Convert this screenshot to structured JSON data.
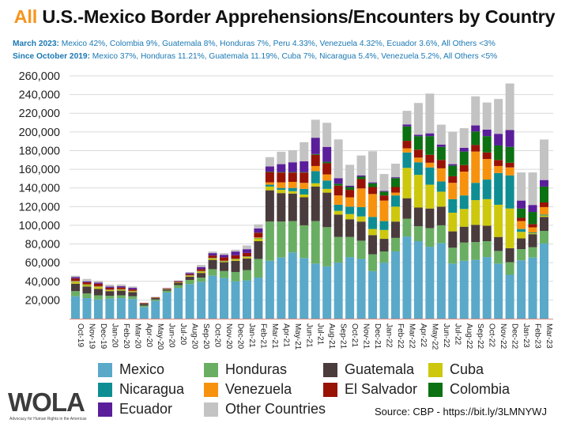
{
  "header": {
    "title_accent": "All",
    "title_rest": " U.S.-Mexico Border Apprehensions/Encounters by Country",
    "sub1_label": "March 2023:",
    "sub1_text": " Mexico 42%, Colombia 9%, Guatemala 8%, Honduras 7%, Peru 4.33%, Venezuela 4.32%, Ecuador 3.6%, All Others <3%",
    "sub2_label": "Since October 2019:",
    "sub2_text": " Mexico 37%, Honduras 11.21%, Guatemala 11.19%, Cuba 7%, Nicaragua 5.4%, Venezuela 5.2%, All Others <5%"
  },
  "footer": {
    "source": "Source: CBP - https://bit.ly/3LMNYWJ",
    "logo_text": "WOLA",
    "logo_tagline": "Advocacy for Human Rights in the Americas"
  },
  "chart_data": {
    "type": "bar",
    "stacked": true,
    "title": "All U.S.-Mexico Border Apprehensions/Encounters by Country",
    "xlabel": "",
    "ylabel": "",
    "ylim": [
      0,
      260000
    ],
    "yticks": [
      20000,
      40000,
      60000,
      80000,
      100000,
      120000,
      140000,
      160000,
      180000,
      200000,
      220000,
      240000,
      260000
    ],
    "ytick_labels": [
      "20,000",
      "40,000",
      "60,000",
      "80,000",
      "100,000",
      "120,000",
      "140,000",
      "160,000",
      "180,000",
      "200,000",
      "220,000",
      "240,000",
      "260,000"
    ],
    "grid": true,
    "legend_position": "bottom",
    "categories": [
      "Oct-19",
      "Nov-19",
      "Dec-19",
      "Jan-20",
      "Feb-20",
      "Mar-20",
      "Apr-20",
      "May-20",
      "Jun-20",
      "Jul-20",
      "Aug-20",
      "Sep-20",
      "Oct-20",
      "Nov-20",
      "Dec-20",
      "Jan-21",
      "Feb-21",
      "Mar-21",
      "Apr-21",
      "May-21",
      "Jun-21",
      "Jul-21",
      "Aug-21",
      "Sep-21",
      "Oct-21",
      "Nov-21",
      "Dec-21",
      "Jan-22",
      "Feb-22",
      "Mar-22",
      "Apr-22",
      "May-22",
      "Jun-22",
      "Jul-22",
      "Aug-22",
      "Sep-22",
      "Oct-22",
      "Nov-22",
      "Dec-22",
      "Jan-23",
      "Feb-23",
      "Mar-23"
    ],
    "series": [
      {
        "name": "Mexico",
        "color": "#5aa9c9",
        "values": [
          24000,
          22000,
          20500,
          21500,
          22000,
          21000,
          12500,
          19000,
          28000,
          33000,
          37000,
          39500,
          46000,
          43500,
          40000,
          41000,
          44000,
          62000,
          65500,
          71000,
          65000,
          59000,
          56000,
          60000,
          66000,
          64000,
          51000,
          60000,
          72000,
          88000,
          83000,
          77000,
          81000,
          59000,
          62000,
          63000,
          66000,
          59000,
          47000,
          62500,
          65500,
          80500
        ]
      },
      {
        "name": "Honduras",
        "color": "#6aae63",
        "values": [
          5500,
          5000,
          4500,
          3000,
          3000,
          3000,
          1500,
          1500,
          2000,
          3000,
          4500,
          4500,
          7000,
          7500,
          10000,
          11000,
          20000,
          42000,
          38500,
          33500,
          35000,
          45500,
          42000,
          27500,
          21500,
          19500,
          18000,
          12000,
          14500,
          19000,
          16000,
          20000,
          19000,
          17000,
          19500,
          19000,
          17000,
          13500,
          13500,
          12000,
          11000,
          13500
        ]
      },
      {
        "name": "Guatemala",
        "color": "#4a3c3c",
        "values": [
          8000,
          7500,
          7000,
          5000,
          5000,
          4500,
          2000,
          1500,
          1500,
          2500,
          3500,
          5000,
          10000,
          9500,
          12000,
          12500,
          19000,
          33500,
          30500,
          29500,
          30000,
          37000,
          37000,
          24000,
          19000,
          20500,
          20500,
          13500,
          17500,
          22000,
          20000,
          21000,
          20000,
          17500,
          17000,
          18500,
          16500,
          15000,
          15000,
          11500,
          14000,
          15000
        ]
      },
      {
        "name": "Cuba",
        "color": "#cdc80d",
        "values": [
          2000,
          1500,
          1800,
          1000,
          1000,
          800,
          100,
          200,
          300,
          500,
          1000,
          1500,
          1500,
          1000,
          1500,
          1500,
          3000,
          4000,
          3500,
          2500,
          3000,
          3500,
          4000,
          4000,
          5500,
          5500,
          6500,
          9500,
          16000,
          32500,
          35000,
          25500,
          16000,
          20000,
          19000,
          26500,
          28500,
          34500,
          42500,
          7000,
          1000,
          1500
        ]
      },
      {
        "name": "Nicaragua",
        "color": "#0e8e92",
        "values": [
          500,
          400,
          400,
          300,
          300,
          200,
          100,
          100,
          100,
          100,
          200,
          300,
          300,
          300,
          400,
          400,
          500,
          2000,
          2000,
          3500,
          6000,
          13000,
          9000,
          6500,
          8000,
          10000,
          13000,
          9500,
          12000,
          16500,
          13500,
          18500,
          11000,
          14500,
          14500,
          18500,
          21000,
          34000,
          35500,
          3000,
          800,
          1000
        ]
      },
      {
        "name": "Venezuela",
        "color": "#f7920e",
        "values": [
          500,
          500,
          600,
          400,
          400,
          300,
          100,
          100,
          100,
          100,
          200,
          300,
          300,
          300,
          400,
          400,
          500,
          2500,
          6000,
          6500,
          6500,
          5500,
          6500,
          10000,
          10000,
          20000,
          24500,
          22000,
          3000,
          4500,
          5000,
          5000,
          14000,
          17500,
          25500,
          33500,
          22000,
          7500,
          8500,
          8500,
          5500,
          8000
        ]
      },
      {
        "name": "El Salvador",
        "color": "#981206",
        "values": [
          2500,
          2000,
          2500,
          1800,
          1600,
          1500,
          600,
          500,
          500,
          800,
          1200,
          1800,
          2500,
          3500,
          3500,
          3500,
          5000,
          11000,
          10500,
          10000,
          11000,
          12000,
          12000,
          10500,
          8000,
          10000,
          7500,
          5500,
          6000,
          8000,
          8500,
          8500,
          9000,
          7000,
          7000,
          7000,
          7000,
          6500,
          5000,
          3500,
          3500,
          5000
        ]
      },
      {
        "name": "Colombia",
        "color": "#0b7112",
        "values": [
          100,
          100,
          100,
          100,
          100,
          100,
          0,
          0,
          0,
          0,
          100,
          100,
          100,
          100,
          100,
          100,
          200,
          500,
          500,
          500,
          500,
          800,
          1500,
          2000,
          3000,
          2500,
          4000,
          4000,
          9500,
          15500,
          14500,
          20000,
          14000,
          11500,
          14500,
          14500,
          17500,
          15500,
          17000,
          10000,
          13000,
          17000
        ]
      },
      {
        "name": "Ecuador",
        "color": "#5a1e9b",
        "values": [
          1500,
          1000,
          1300,
          1200,
          1300,
          1600,
          100,
          200,
          300,
          500,
          1300,
          2300,
          2500,
          2700,
          4000,
          4000,
          4500,
          5500,
          8500,
          10500,
          11500,
          17500,
          16000,
          6000,
          1500,
          1500,
          1000,
          800,
          1000,
          2000,
          1500,
          3000,
          2500,
          1500,
          4000,
          6500,
          7000,
          12500,
          18000,
          8500,
          7500,
          7000
        ]
      },
      {
        "name": "Other Countries",
        "color": "#c3c3c3",
        "values": [
          1400,
          2600,
          1900,
          2200,
          2000,
          1500,
          100,
          100,
          200,
          400,
          1000,
          2300,
          1700,
          1700,
          2000,
          4000,
          4300,
          10000,
          13300,
          13000,
          20500,
          19300,
          25800,
          41500,
          22300,
          21300,
          33300,
          18100,
          14500,
          14600,
          34000,
          42600,
          21300,
          34700,
          21000,
          31100,
          29000,
          37300,
          49900,
          30100,
          34800,
          43400
        ]
      }
    ]
  }
}
